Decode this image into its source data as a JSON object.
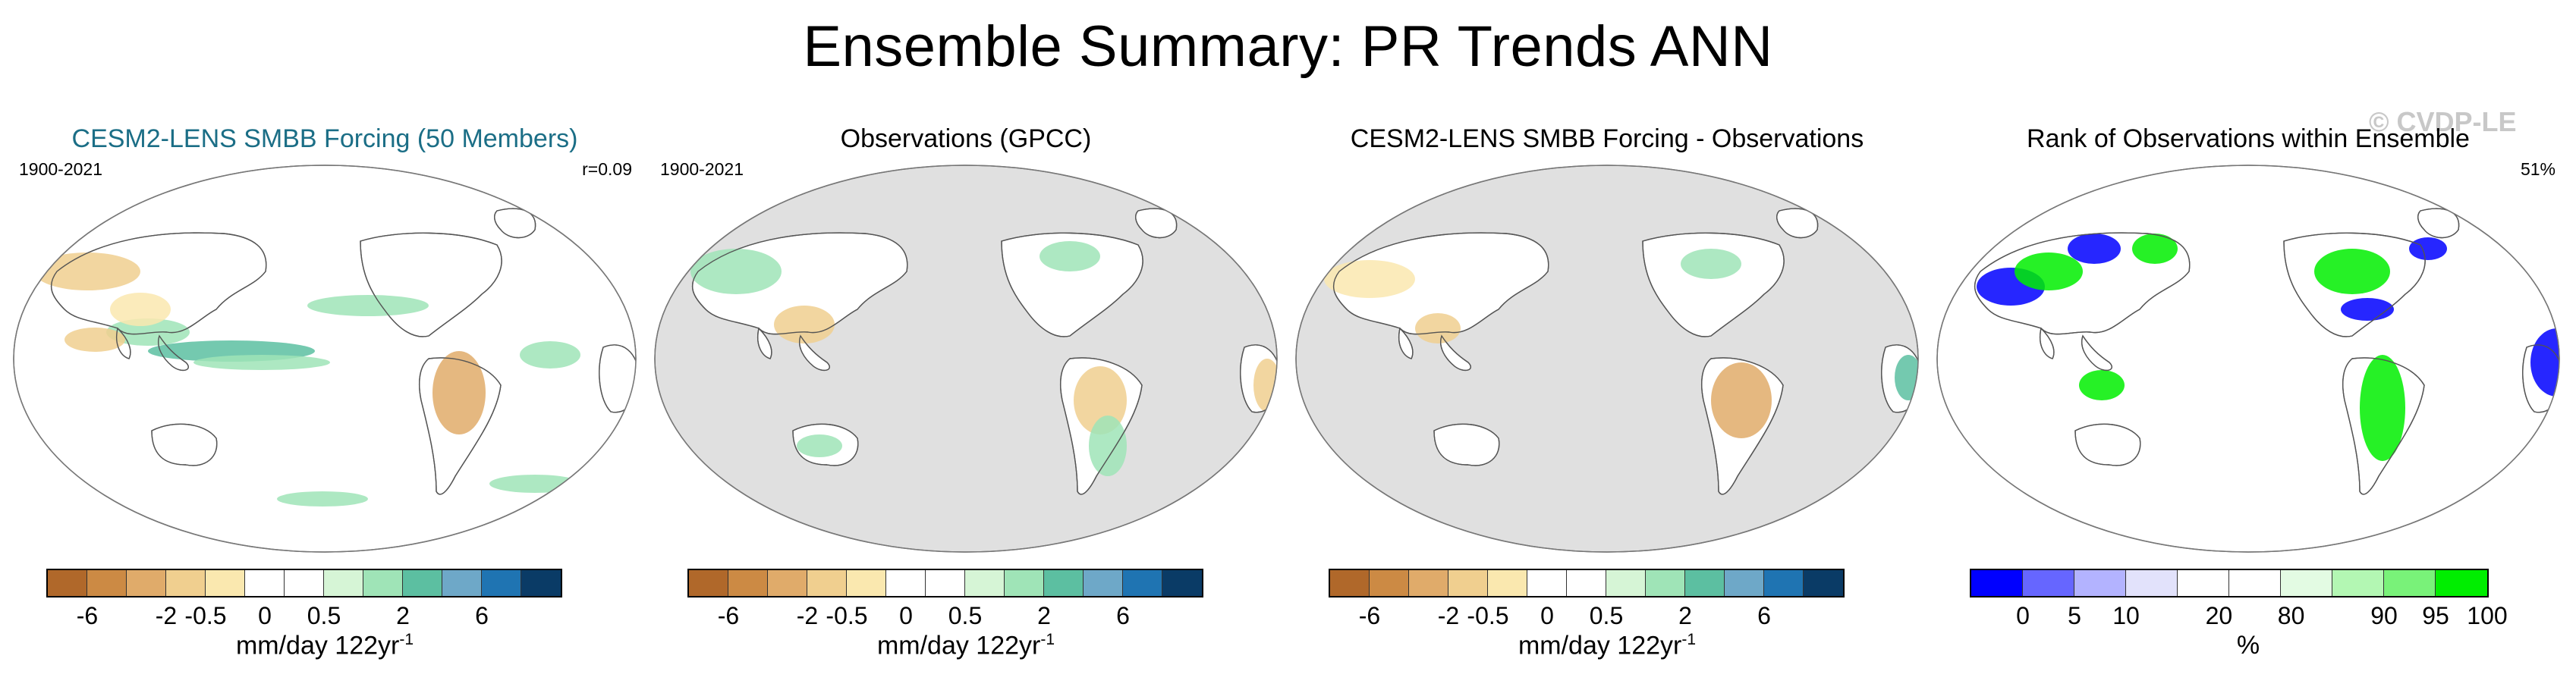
{
  "title": "Ensemble Summary: PR Trends ANN",
  "watermark": "© CVDP-LE",
  "colors": {
    "trend": [
      "#b0682a",
      "#cc8a44",
      "#e0ab6a",
      "#f0cf8f",
      "#fae8af",
      "#ffffff",
      "#ffffff",
      "#d6f5d6",
      "#9fe4b7",
      "#5cbfa1",
      "#6ea8c8",
      "#1f74b2",
      "#0a3b66"
    ],
    "rank": [
      "#0000ff",
      "#6666ff",
      "#b3b3ff",
      "#e2e2fb",
      "#ffffff",
      "#ffffff",
      "#e3fbe3",
      "#b3f7b3",
      "#79f279",
      "#00ee00"
    ],
    "land_mask": "#e0e0e0",
    "coastline": "#555555"
  },
  "panels": [
    {
      "title": "CESM2-LENS SMBB Forcing (50 Members)",
      "period": "1900-2021",
      "stat": "r=0.09",
      "colorbar": {
        "type": "trend",
        "ticks": [
          "-6",
          "-2",
          "-0.5",
          "0",
          "0.5",
          "2",
          "6"
        ],
        "unit": "mm/day 122yr",
        "unit_sup": "-1"
      }
    },
    {
      "title": "Observations (GPCC)",
      "period": "1900-2021",
      "stat": "",
      "colorbar": {
        "type": "trend",
        "ticks": [
          "-6",
          "-2",
          "-0.5",
          "0",
          "0.5",
          "2",
          "6"
        ],
        "unit": "mm/day 122yr",
        "unit_sup": "-1"
      }
    },
    {
      "title": "CESM2-LENS SMBB Forcing - Observations",
      "period": "",
      "stat": "",
      "colorbar": {
        "type": "trend",
        "ticks": [
          "-6",
          "-2",
          "-0.5",
          "0",
          "0.5",
          "2",
          "6"
        ],
        "unit": "mm/day 122yr",
        "unit_sup": "-1"
      }
    },
    {
      "title": "Rank of Observations within Ensemble",
      "period": "",
      "stat": "51%",
      "colorbar": {
        "type": "rank",
        "ticks": [
          "0",
          "5",
          "10",
          "20",
          "80",
          "90",
          "95",
          "100"
        ],
        "unit": "%",
        "unit_sup": ""
      }
    }
  ]
}
